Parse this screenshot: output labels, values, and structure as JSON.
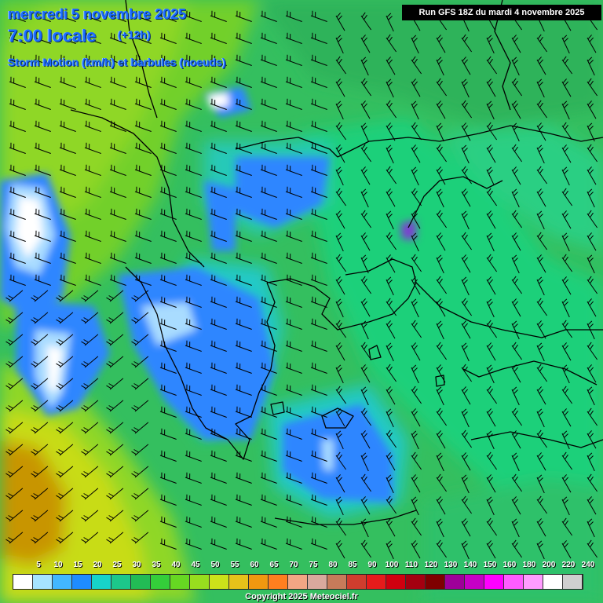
{
  "title": {
    "date": "mercredi 5 novembre 2025",
    "time": "7:00 locale",
    "offset": "(+12h)",
    "variable": "Storm Motion (km/h) et barbules (noeuds)"
  },
  "run_label": "Run GFS 18Z du mardi 4 novembre 2025",
  "copyright": "Copyright 2025 Meteociel.fr",
  "legend": {
    "values": [
      "5",
      "10",
      "15",
      "20",
      "25",
      "30",
      "35",
      "40",
      "45",
      "50",
      "55",
      "60",
      "65",
      "70",
      "75",
      "80",
      "85",
      "90",
      "100",
      "110",
      "120",
      "130",
      "140",
      "150",
      "160",
      "180",
      "200",
      "220",
      "240"
    ],
    "colors": [
      "#ffffff",
      "#a6e4ff",
      "#42b7ff",
      "#1e8cff",
      "#17d3c9",
      "#1cc78a",
      "#22bb55",
      "#34ce3a",
      "#66d822",
      "#98de1e",
      "#cce21a",
      "#e6c21a",
      "#f09810",
      "#ff7f1f",
      "#f2a684",
      "#d9a99d",
      "#c77b5a",
      "#cf3d2e",
      "#e51b1b",
      "#d0000f",
      "#a40010",
      "#7f0000",
      "#9e0099",
      "#c600c6",
      "#ff00ff",
      "#ff5cff",
      "#ff9cff",
      "#ffffff",
      "#cfcfcf"
    ]
  }
}
